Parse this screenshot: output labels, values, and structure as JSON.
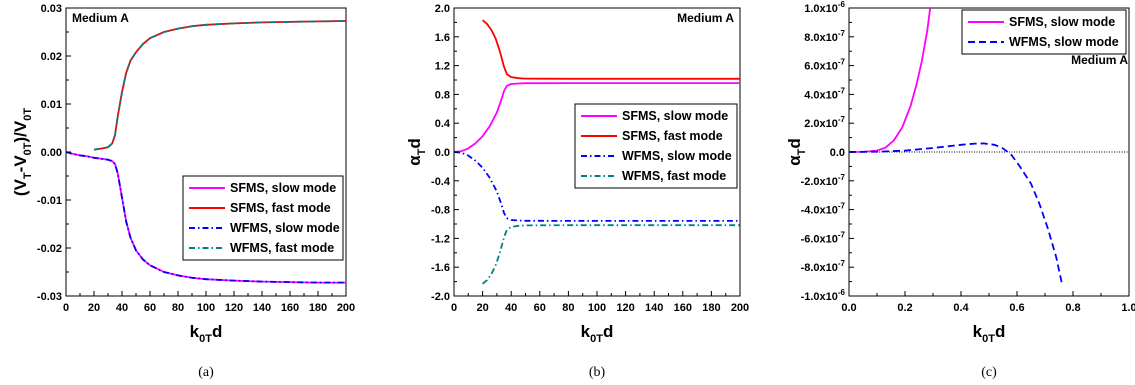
{
  "chart_data": [
    {
      "type": "line",
      "panel_label": "(a)",
      "annotation": "Medium A",
      "xlabel": {
        "main": "k",
        "sub": "0T",
        "tail": "d"
      },
      "ylabel": {
        "p1": "(V",
        "s1": "T",
        "p2": "-V",
        "s2": "0T",
        "p3": ")/V",
        "s3": "0T"
      },
      "xlim": [
        0,
        200
      ],
      "ylim": [
        -0.03,
        0.03
      ],
      "xticks": [
        "0",
        "20",
        "40",
        "60",
        "80",
        "100",
        "120",
        "140",
        "160",
        "180",
        "200"
      ],
      "yticks": [
        "-0.03",
        "-0.02",
        "-0.01",
        "0.00",
        "0.01",
        "0.02",
        "0.03"
      ],
      "legend_position": "bottom-right",
      "series": [
        {
          "name": "SFMS, slow mode",
          "color": "#ff00ff",
          "dash": "solid",
          "x": [
            0,
            5,
            10,
            15,
            20,
            25,
            30,
            33,
            35,
            37,
            40,
            43,
            46,
            50,
            55,
            60,
            70,
            80,
            90,
            100,
            120,
            140,
            160,
            180,
            200
          ],
          "y": [
            0.0,
            -0.0004,
            -0.0007,
            -0.0009,
            -0.0012,
            -0.0014,
            -0.0016,
            -0.0019,
            -0.0025,
            -0.0045,
            -0.0095,
            -0.0145,
            -0.0178,
            -0.0205,
            -0.0224,
            -0.0236,
            -0.025,
            -0.0257,
            -0.0262,
            -0.0265,
            -0.0268,
            -0.027,
            -0.0271,
            -0.0272,
            -0.0272
          ]
        },
        {
          "name": "SFMS, fast mode",
          "color": "#ff0000",
          "dash": "solid",
          "x": [
            20,
            25,
            30,
            33,
            35,
            37,
            40,
            43,
            46,
            50,
            55,
            60,
            70,
            80,
            90,
            100,
            120,
            140,
            160,
            180,
            200
          ],
          "y": [
            0.0005,
            0.0007,
            0.001,
            0.0018,
            0.0035,
            0.0075,
            0.0125,
            0.0165,
            0.019,
            0.0208,
            0.0225,
            0.0237,
            0.025,
            0.0257,
            0.0262,
            0.0265,
            0.0268,
            0.027,
            0.0271,
            0.0272,
            0.0273
          ]
        },
        {
          "name": "WFMS, slow mode",
          "color": "#0000ff",
          "dash": "dashdot",
          "x": [
            0,
            5,
            10,
            15,
            20,
            25,
            30,
            33,
            35,
            37,
            40,
            43,
            46,
            50,
            55,
            60,
            70,
            80,
            90,
            100,
            120,
            140,
            160,
            180,
            200
          ],
          "y": [
            0.0,
            -0.0004,
            -0.0007,
            -0.0009,
            -0.0012,
            -0.0014,
            -0.0016,
            -0.0019,
            -0.0025,
            -0.0045,
            -0.0095,
            -0.0145,
            -0.0178,
            -0.0205,
            -0.0224,
            -0.0236,
            -0.025,
            -0.0257,
            -0.0262,
            -0.0265,
            -0.0268,
            -0.027,
            -0.0271,
            -0.0272,
            -0.0272
          ]
        },
        {
          "name": "WFMS, fast mode",
          "color": "#008080",
          "dash": "dashdot",
          "x": [
            20,
            25,
            30,
            33,
            35,
            37,
            40,
            43,
            46,
            50,
            55,
            60,
            70,
            80,
            90,
            100,
            120,
            140,
            160,
            180,
            200
          ],
          "y": [
            0.0005,
            0.0007,
            0.001,
            0.0018,
            0.0035,
            0.0075,
            0.0125,
            0.0165,
            0.019,
            0.0208,
            0.0225,
            0.0237,
            0.025,
            0.0257,
            0.0262,
            0.0265,
            0.0268,
            0.027,
            0.0271,
            0.0272,
            0.0273
          ]
        }
      ]
    },
    {
      "type": "line",
      "panel_label": "(b)",
      "annotation": "Medium A",
      "xlabel": {
        "main": "k",
        "sub": "0T",
        "tail": "d"
      },
      "ylabel": {
        "p1": "α",
        "s1": "T",
        "p2": "d"
      },
      "xlim": [
        0,
        200
      ],
      "ylim": [
        -2.0,
        2.0
      ],
      "xticks": [
        "0",
        "20",
        "40",
        "60",
        "80",
        "100",
        "120",
        "140",
        "160",
        "180",
        "200"
      ],
      "yticks": [
        "-2.0",
        "-1.6",
        "-1.2",
        "-0.8",
        "-0.4",
        "0.0",
        "0.4",
        "0.8",
        "1.2",
        "1.6",
        "2.0"
      ],
      "legend_position": "center-right",
      "series": [
        {
          "name": "SFMS, slow mode",
          "color": "#ff00ff",
          "dash": "solid",
          "x": [
            0,
            5,
            10,
            15,
            20,
            25,
            30,
            33,
            35,
            37,
            40,
            45,
            50,
            60,
            80,
            100,
            150,
            200
          ],
          "y": [
            0.0,
            0.01,
            0.05,
            0.12,
            0.22,
            0.36,
            0.55,
            0.72,
            0.85,
            0.92,
            0.945,
            0.952,
            0.955,
            0.956,
            0.957,
            0.957,
            0.957,
            0.957
          ]
        },
        {
          "name": "SFMS, fast mode",
          "color": "#ff0000",
          "dash": "solid",
          "x": [
            20,
            23,
            26,
            29,
            32,
            35,
            37,
            40,
            45,
            50,
            60,
            80,
            100,
            150,
            200
          ],
          "y": [
            1.83,
            1.78,
            1.7,
            1.58,
            1.4,
            1.18,
            1.08,
            1.04,
            1.025,
            1.02,
            1.018,
            1.017,
            1.017,
            1.017,
            1.017
          ]
        },
        {
          "name": "WFMS, slow mode",
          "color": "#0000ff",
          "dash": "dashdot",
          "x": [
            0,
            5,
            10,
            15,
            20,
            25,
            30,
            33,
            35,
            37,
            40,
            45,
            50,
            60,
            80,
            100,
            150,
            200
          ],
          "y": [
            0.0,
            -0.01,
            -0.05,
            -0.12,
            -0.22,
            -0.36,
            -0.55,
            -0.72,
            -0.85,
            -0.92,
            -0.945,
            -0.952,
            -0.955,
            -0.956,
            -0.957,
            -0.957,
            -0.957,
            -0.957
          ]
        },
        {
          "name": "WFMS, fast mode",
          "color": "#008080",
          "dash": "dashdot",
          "x": [
            20,
            23,
            26,
            29,
            32,
            35,
            37,
            40,
            45,
            50,
            60,
            80,
            100,
            150,
            200
          ],
          "y": [
            -1.83,
            -1.78,
            -1.7,
            -1.58,
            -1.4,
            -1.18,
            -1.08,
            -1.04,
            -1.025,
            -1.02,
            -1.018,
            -1.017,
            -1.017,
            -1.017,
            -1.017
          ]
        }
      ]
    },
    {
      "type": "line",
      "panel_label": "(c)",
      "annotation": "Medium A",
      "xlabel": {
        "main": "k",
        "sub": "0T",
        "tail": "d"
      },
      "ylabel": {
        "p1": "α",
        "s1": "T",
        "p2": "d"
      },
      "xlim": [
        0,
        1.0
      ],
      "ylim": [
        -1e-06,
        1e-06
      ],
      "xticks": [
        "0.0",
        "0.2",
        "0.4",
        "0.6",
        "0.8",
        "1.0"
      ],
      "yticks": [
        {
          "m": "-1.0x10",
          "e": "-6"
        },
        {
          "m": "-8.0x10",
          "e": "-7"
        },
        {
          "m": "-6.0x10",
          "e": "-7"
        },
        {
          "m": "-4.0x10",
          "e": "-7"
        },
        {
          "m": "-2.0x10",
          "e": "-7"
        },
        {
          "m": "0.0",
          "e": ""
        },
        {
          "m": "2.0x10",
          "e": "-7"
        },
        {
          "m": "4.0x10",
          "e": "-7"
        },
        {
          "m": "6.0x10",
          "e": "-7"
        },
        {
          "m": "8.0x10",
          "e": "-7"
        },
        {
          "m": "1.0x10",
          "e": "-6"
        }
      ],
      "reference_line_y": 0,
      "legend_position": "top-right",
      "series": [
        {
          "name": "SFMS, slow mode",
          "color": "#ff00ff",
          "dash": "solid",
          "x": [
            0.0,
            0.05,
            0.1,
            0.13,
            0.16,
            0.19,
            0.22,
            0.24,
            0.26,
            0.28,
            0.29
          ],
          "y": [
            0.0,
            1e-09,
            1e-08,
            3e-08,
            8e-08,
            1.7e-07,
            3.2e-07,
            4.6e-07,
            6.3e-07,
            8.5e-07,
            1e-06
          ]
        },
        {
          "name": "WFMS, slow mode",
          "color": "#0000ff",
          "dash": "dash",
          "x": [
            0.0,
            0.1,
            0.2,
            0.3,
            0.4,
            0.45,
            0.48,
            0.52,
            0.55,
            0.58,
            0.61,
            0.65,
            0.68,
            0.71,
            0.74,
            0.76
          ],
          "y": [
            0.0,
            2e-09,
            1e-08,
            2.8e-08,
            5e-08,
            5.8e-08,
            6e-08,
            5e-08,
            2.5e-08,
            -2e-08,
            -1e-07,
            -2.2e-07,
            -3.6e-07,
            -5.3e-07,
            -7.3e-07,
            -9.1e-07
          ]
        }
      ]
    }
  ]
}
